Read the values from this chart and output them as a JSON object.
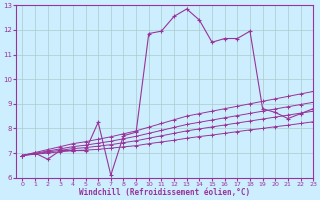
{
  "xlabel": "Windchill (Refroidissement éolien,°C)",
  "bg_color": "#cceeff",
  "grid_color": "#aacccc",
  "line_color": "#993399",
  "xlim": [
    -0.5,
    23
  ],
  "ylim": [
    6,
    13
  ],
  "xticks": [
    0,
    1,
    2,
    3,
    4,
    5,
    6,
    7,
    8,
    9,
    10,
    11,
    12,
    13,
    14,
    15,
    16,
    17,
    18,
    19,
    20,
    21,
    22,
    23
  ],
  "yticks": [
    6,
    7,
    8,
    9,
    10,
    11,
    12,
    13
  ],
  "main_line_x": [
    0,
    1,
    2,
    3,
    4,
    5,
    6,
    7,
    8,
    9,
    10,
    11,
    12,
    13,
    14,
    15,
    16,
    17,
    18,
    19,
    20,
    21,
    22,
    23
  ],
  "main_line_y": [
    6.9,
    7.0,
    6.75,
    7.1,
    7.1,
    7.1,
    8.25,
    6.1,
    7.7,
    7.85,
    11.85,
    11.95,
    12.55,
    12.85,
    12.4,
    11.5,
    11.65,
    11.65,
    11.95,
    8.8,
    8.65,
    8.4,
    8.6,
    8.8
  ],
  "trend1_y": [
    6.9,
    6.95,
    7.0,
    7.05,
    7.1,
    7.12,
    7.15,
    7.2,
    7.25,
    7.3,
    7.38,
    7.45,
    7.52,
    7.6,
    7.67,
    7.73,
    7.8,
    7.87,
    7.94,
    8.0,
    8.07,
    8.13,
    8.2,
    8.27
  ],
  "trend2_y": [
    6.9,
    6.97,
    7.04,
    7.11,
    7.18,
    7.22,
    7.28,
    7.34,
    7.42,
    7.5,
    7.6,
    7.7,
    7.8,
    7.9,
    7.98,
    8.06,
    8.14,
    8.22,
    8.3,
    8.38,
    8.46,
    8.54,
    8.62,
    8.7
  ],
  "trend3_y": [
    6.9,
    6.99,
    7.08,
    7.17,
    7.26,
    7.32,
    7.4,
    7.48,
    7.58,
    7.68,
    7.8,
    7.92,
    8.04,
    8.16,
    8.25,
    8.34,
    8.43,
    8.52,
    8.61,
    8.7,
    8.79,
    8.88,
    8.97,
    9.06
  ],
  "trend4_y": [
    6.9,
    7.02,
    7.14,
    7.26,
    7.38,
    7.46,
    7.56,
    7.66,
    7.78,
    7.9,
    8.05,
    8.2,
    8.35,
    8.5,
    8.6,
    8.7,
    8.8,
    8.9,
    9.0,
    9.1,
    9.2,
    9.3,
    9.4,
    9.5
  ]
}
